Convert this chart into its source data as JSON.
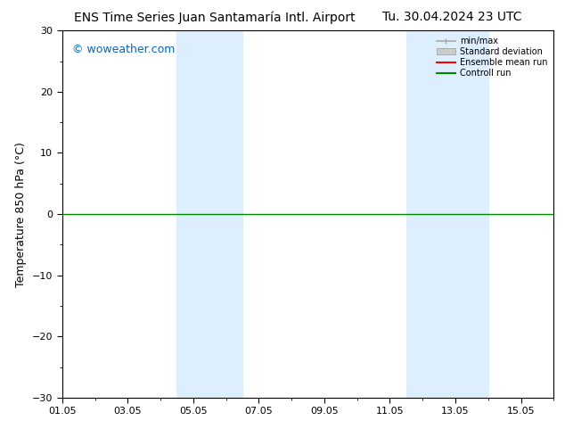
{
  "title_left": "ENS Time Series Juan Santamaría Intl. Airport",
  "title_right": "Tu. 30.04.2024 23 UTC",
  "ylabel": "Temperature 850 hPa (°C)",
  "watermark": "© woweather.com",
  "ylim": [
    -30,
    30
  ],
  "yticks": [
    -30,
    -20,
    -10,
    0,
    10,
    20,
    30
  ],
  "xtick_labels": [
    "01.05",
    "03.05",
    "05.05",
    "07.05",
    "09.05",
    "11.05",
    "13.05",
    "15.05"
  ],
  "xtick_positions": [
    0,
    2,
    4,
    6,
    8,
    10,
    12,
    14
  ],
  "xlim": [
    0,
    15
  ],
  "shaded_bands": [
    {
      "start": 3.5,
      "end": 5.5
    },
    {
      "start": 10.5,
      "end": 13.0
    }
  ],
  "hline_y": 0,
  "hline_color": "#008800",
  "legend_labels": [
    "min/max",
    "Standard deviation",
    "Ensemble mean run",
    "Controll run"
  ],
  "legend_line_color": "#aaaaaa",
  "legend_std_color": "#cccccc",
  "legend_ens_color": "#ff0000",
  "legend_ctrl_color": "#008800",
  "background_color": "#ffffff",
  "plot_bg_color": "#ffffff",
  "shaded_color": "#ddeeff",
  "border_color": "#000000",
  "title_fontsize": 10,
  "axis_fontsize": 9,
  "tick_fontsize": 8,
  "watermark_color": "#0066cc",
  "watermark_fontsize": 9
}
